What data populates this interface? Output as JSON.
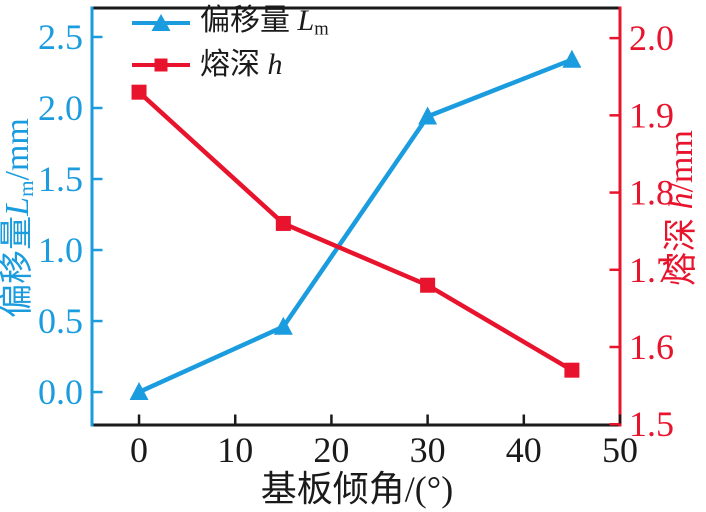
{
  "chart_data": {
    "type": "line",
    "x": [
      0,
      15,
      30,
      45
    ],
    "series": [
      {
        "name": "偏移量 Lm",
        "axis": "left",
        "color": "#1b9cde",
        "marker": "triangle-up",
        "values": [
          0.0,
          0.46,
          1.94,
          2.34
        ]
      },
      {
        "name": "熔深 h",
        "axis": "right",
        "color": "#e8142d",
        "marker": "square",
        "values": [
          1.93,
          1.76,
          1.68,
          1.57
        ]
      }
    ],
    "title": "",
    "xlabel": "基板倾角/(°)",
    "ylabel_left": "偏移量 Lm/mm",
    "ylabel_right": "熔深 h/mm",
    "xlim": [
      -4.89,
      50
    ],
    "ylim_left": [
      -0.232,
      2.704
    ],
    "ylim_right": [
      1.499,
      2.039
    ],
    "xticks": {
      "values": [
        0,
        10,
        20,
        30,
        40,
        50
      ],
      "labels": [
        "0",
        "10",
        "20",
        "30",
        "40",
        "50"
      ]
    },
    "yticks_left": {
      "values": [
        0.0,
        0.5,
        1.0,
        1.5,
        2.0,
        2.5
      ],
      "labels": [
        "0.0",
        "0.5",
        "1.0",
        "1.5",
        "2.0",
        "2.5"
      ]
    },
    "yticks_right": {
      "values": [
        1.5,
        1.6,
        1.7,
        1.8,
        1.9,
        2.0
      ],
      "labels": [
        "1.5",
        "1.6",
        "1.7",
        "1.8",
        "1.9",
        "2.0"
      ]
    },
    "grid": false,
    "legend_position": "inside-top-left"
  },
  "labels": {
    "legend1_prefix": "偏移量 ",
    "legend1_var": "L",
    "legend1_sub": "m",
    "legend2_prefix": "熔深 ",
    "legend2_var": "h",
    "ylabel_left_prefix": "偏移量",
    "ylabel_left_var": "L",
    "ylabel_left_sub": "m",
    "ylabel_left_unit": "/mm",
    "ylabel_right_prefix": "熔深 ",
    "ylabel_right_var": "h",
    "ylabel_right_unit": "/mm",
    "xlabel": "基板倾角/(°)"
  },
  "colors": {
    "left_axis": "#1b9cde",
    "right_axis": "#e8142d",
    "frame": "#1a1a1a",
    "text": "#1a1a1a",
    "background": "#ffffff"
  }
}
